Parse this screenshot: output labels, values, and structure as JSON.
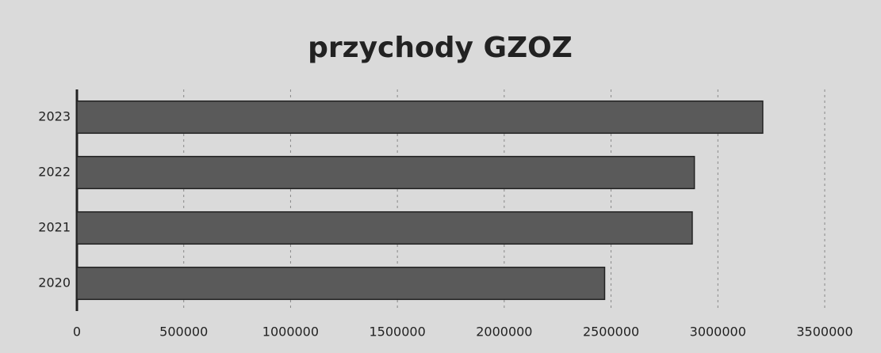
{
  "chart_data": {
    "type": "barh",
    "title": "przychody GZOZ",
    "categories": [
      "2020",
      "2021",
      "2022",
      "2023"
    ],
    "values": [
      2470000,
      2880000,
      2890000,
      3210000
    ],
    "color": "#5a5a5a",
    "xlim": [
      0,
      3500000
    ],
    "xticks": [
      0,
      500000,
      1000000,
      1500000,
      2000000,
      2500000,
      3000000,
      3500000
    ],
    "grid": true
  }
}
